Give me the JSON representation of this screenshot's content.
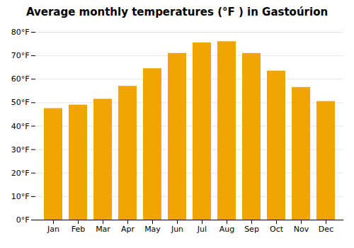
{
  "chart_data": {
    "type": "bar",
    "title": "Average monthly temperatures (°F ) in Gastoúrion",
    "categories": [
      "Jan",
      "Feb",
      "Mar",
      "Apr",
      "May",
      "Jun",
      "Jul",
      "Aug",
      "Sep",
      "Oct",
      "Nov",
      "Dec"
    ],
    "values": [
      47.5,
      49.0,
      51.5,
      57.0,
      64.5,
      71.0,
      75.5,
      76.0,
      71.0,
      63.5,
      56.5,
      50.5
    ],
    "color": "#F0A500",
    "ylim": [
      0,
      80
    ],
    "yticks": [
      {
        "value": 0,
        "label": "0°F"
      },
      {
        "value": 10,
        "label": "10°F"
      },
      {
        "value": 20,
        "label": "20°F"
      },
      {
        "value": 30,
        "label": "30°F"
      },
      {
        "value": 40,
        "label": "40°F"
      },
      {
        "value": 50,
        "label": "50°F"
      },
      {
        "value": 60,
        "label": "60°F"
      },
      {
        "value": 70,
        "label": "70°F"
      },
      {
        "value": 80,
        "label": "80°F"
      }
    ],
    "grid": true
  }
}
